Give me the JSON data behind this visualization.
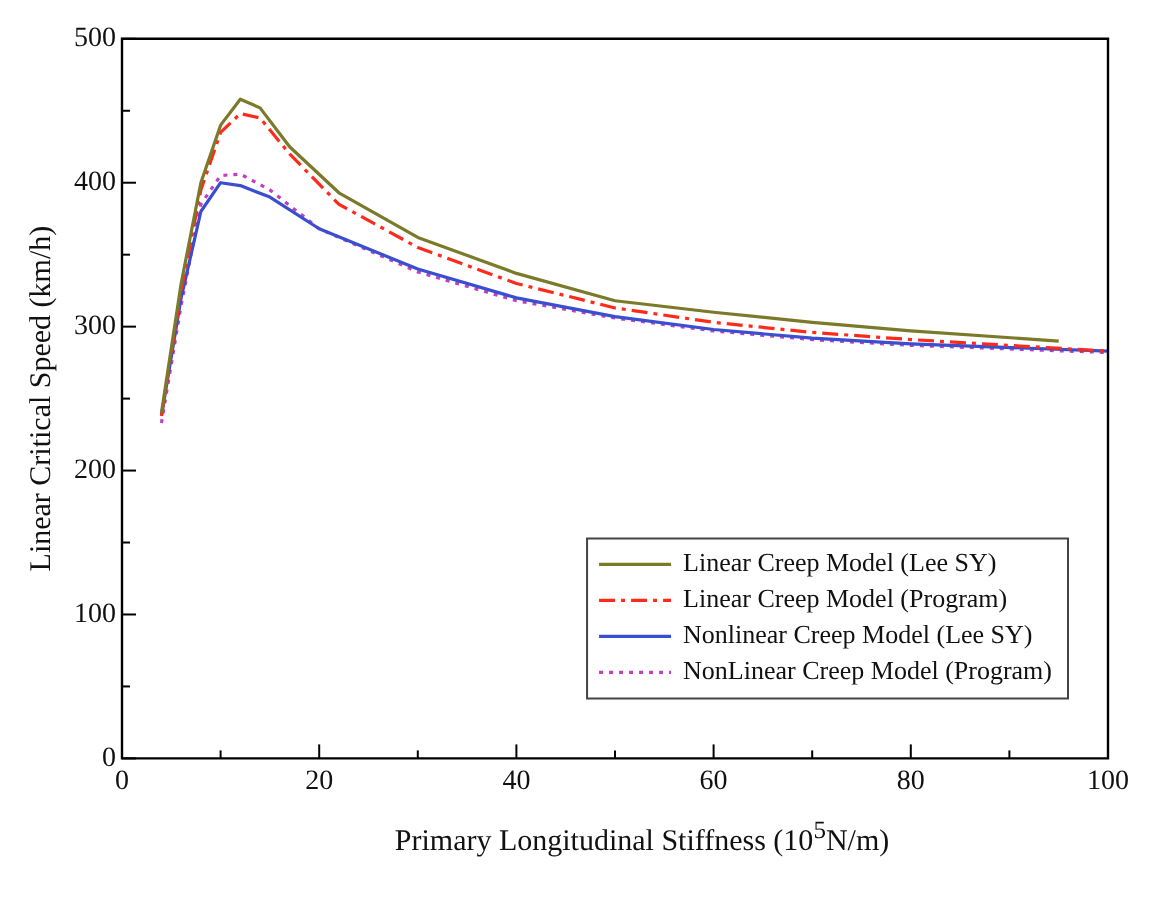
{
  "chart_data": {
    "type": "line",
    "xlabel": "Primary Longitudinal Stiffness (10$^{5}$N/m)",
    "ylabel": "Linear Critical Speed (km/h)",
    "xlim": [
      0,
      100
    ],
    "ylim": [
      0,
      500
    ],
    "xticks": [
      0,
      {
        "value": 10,
        "label": null
      },
      20,
      {
        "value": 30,
        "label": null
      },
      40,
      {
        "value": 50,
        "label": null
      },
      60,
      {
        "value": 70,
        "label": null
      },
      80,
      {
        "value": 90,
        "label": null
      },
      100
    ],
    "yticks": [
      0,
      {
        "value": 50,
        "label": null
      },
      100,
      {
        "value": 150,
        "label": null
      },
      200,
      {
        "value": 250,
        "label": null
      },
      300,
      {
        "value": 350,
        "label": null
      },
      400,
      {
        "value": 450,
        "label": null
      },
      500
    ],
    "grid": false,
    "legend": "bottom right",
    "marker": "none",
    "series": [
      {
        "name": "Linear Creep Model (Lee SY)",
        "color": "#7a7a2a",
        "line_style": "solid",
        "x": [
          4,
          6,
          8,
          10,
          12,
          14,
          17,
          22,
          30,
          40,
          50,
          60,
          70,
          80,
          95
        ],
        "values": [
          240,
          330,
          400,
          440,
          458,
          452,
          425,
          393,
          362,
          337,
          318,
          310,
          303,
          297,
          290
        ]
      },
      {
        "name": "Linear Creep Model (Program)",
        "color": "#ff2a1a",
        "line_style": "dashdot",
        "x": [
          4,
          6,
          8,
          10,
          12,
          14,
          17,
          22,
          30,
          40,
          50,
          60,
          70,
          80,
          100
        ],
        "values": [
          238,
          325,
          395,
          435,
          448,
          445,
          420,
          385,
          355,
          330,
          313,
          303,
          296,
          291,
          283
        ]
      },
      {
        "name": "Nonlinear Creep Model (Lee SY)",
        "color": "#3a4ed0",
        "line_style": "solid",
        "x": [
          4,
          6,
          8,
          10,
          12,
          15,
          20,
          30,
          40,
          50,
          60,
          70,
          80,
          100
        ],
        "values": [
          238,
          320,
          380,
          400,
          398,
          390,
          368,
          340,
          320,
          307,
          298,
          292,
          288,
          283
        ]
      },
      {
        "name": "NonLinear Creep Model (Program)",
        "color": "#c040c0",
        "line_style": "dotted",
        "x": [
          4,
          6,
          8,
          10,
          12,
          15,
          20,
          30,
          40,
          50,
          60,
          70,
          80,
          100
        ],
        "values": [
          233,
          315,
          385,
          405,
          406,
          395,
          368,
          338,
          318,
          306,
          297,
          291,
          287,
          282
        ]
      }
    ]
  }
}
